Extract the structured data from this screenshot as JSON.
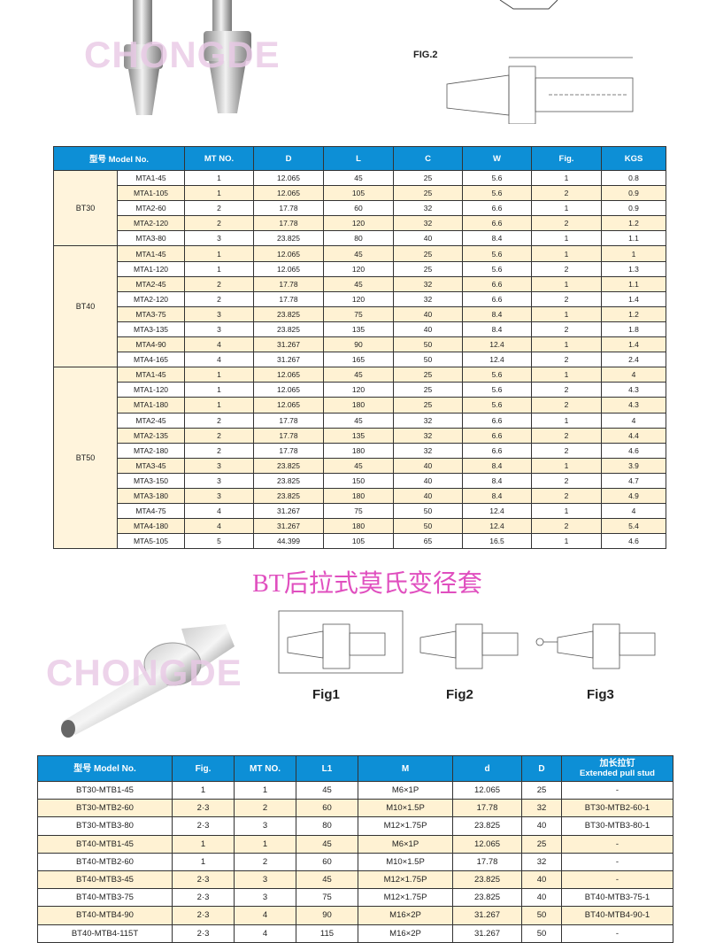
{
  "logo_text": "CHONGDE",
  "fig_top": "FIG.2",
  "table1": {
    "headers": [
      "型号 Model No.",
      "MT NO.",
      "D",
      "L",
      "C",
      "W",
      "Fig.",
      "KGS"
    ],
    "groups": [
      {
        "name": "BT30",
        "rows": [
          [
            "MTA1-45",
            "1",
            "12.065",
            "45",
            "25",
            "5.6",
            "1",
            "0.8"
          ],
          [
            "MTA1-105",
            "1",
            "12.065",
            "105",
            "25",
            "5.6",
            "2",
            "0.9"
          ],
          [
            "MTA2-60",
            "2",
            "17.78",
            "60",
            "32",
            "6.6",
            "1",
            "0.9"
          ],
          [
            "MTA2-120",
            "2",
            "17.78",
            "120",
            "32",
            "6.6",
            "2",
            "1.2"
          ],
          [
            "MTA3-80",
            "3",
            "23.825",
            "80",
            "40",
            "8.4",
            "1",
            "1.1"
          ]
        ]
      },
      {
        "name": "BT40",
        "rows": [
          [
            "MTA1-45",
            "1",
            "12.065",
            "45",
            "25",
            "5.6",
            "1",
            "1"
          ],
          [
            "MTA1-120",
            "1",
            "12.065",
            "120",
            "25",
            "5.6",
            "2",
            "1.3"
          ],
          [
            "MTA2-45",
            "2",
            "17.78",
            "45",
            "32",
            "6.6",
            "1",
            "1.1"
          ],
          [
            "MTA2-120",
            "2",
            "17.78",
            "120",
            "32",
            "6.6",
            "2",
            "1.4"
          ],
          [
            "MTA3-75",
            "3",
            "23.825",
            "75",
            "40",
            "8.4",
            "1",
            "1.2"
          ],
          [
            "MTA3-135",
            "3",
            "23.825",
            "135",
            "40",
            "8.4",
            "2",
            "1.8"
          ],
          [
            "MTA4-90",
            "4",
            "31.267",
            "90",
            "50",
            "12.4",
            "1",
            "1.4"
          ],
          [
            "MTA4-165",
            "4",
            "31.267",
            "165",
            "50",
            "12.4",
            "2",
            "2.4"
          ]
        ]
      },
      {
        "name": "BT50",
        "rows": [
          [
            "MTA1-45",
            "1",
            "12.065",
            "45",
            "25",
            "5.6",
            "1",
            "4"
          ],
          [
            "MTA1-120",
            "1",
            "12.065",
            "120",
            "25",
            "5.6",
            "2",
            "4.3"
          ],
          [
            "MTA1-180",
            "1",
            "12.065",
            "180",
            "25",
            "5.6",
            "2",
            "4.3"
          ],
          [
            "MTA2-45",
            "2",
            "17.78",
            "45",
            "32",
            "6.6",
            "1",
            "4"
          ],
          [
            "MTA2-135",
            "2",
            "17.78",
            "135",
            "32",
            "6.6",
            "2",
            "4.4"
          ],
          [
            "MTA2-180",
            "2",
            "17.78",
            "180",
            "32",
            "6.6",
            "2",
            "4.6"
          ],
          [
            "MTA3-45",
            "3",
            "23.825",
            "45",
            "40",
            "8.4",
            "1",
            "3.9"
          ],
          [
            "MTA3-150",
            "3",
            "23.825",
            "150",
            "40",
            "8.4",
            "2",
            "4.7"
          ],
          [
            "MTA3-180",
            "3",
            "23.825",
            "180",
            "40",
            "8.4",
            "2",
            "4.9"
          ],
          [
            "MTA4-75",
            "4",
            "31.267",
            "75",
            "50",
            "12.4",
            "1",
            "4"
          ],
          [
            "MTA4-180",
            "4",
            "31.267",
            "180",
            "50",
            "12.4",
            "2",
            "5.4"
          ],
          [
            "MTA5-105",
            "5",
            "44.399",
            "105",
            "65",
            "16.5",
            "1",
            "4.6"
          ]
        ]
      }
    ]
  },
  "section_title": "BT后拉式莫氏变径套",
  "figs": [
    "Fig1",
    "Fig2",
    "Fig3"
  ],
  "table2": {
    "headers": [
      "型号 Model No.",
      "Fig.",
      "MT NO.",
      "L1",
      "M",
      "d",
      "D",
      "加长拉钉\nExtended pull stud"
    ],
    "rows": [
      [
        "BT30-MTB1-45",
        "1",
        "1",
        "45",
        "M6×1P",
        "12.065",
        "25",
        "-"
      ],
      [
        "BT30-MTB2-60",
        "2·3",
        "2",
        "60",
        "M10×1.5P",
        "17.78",
        "32",
        "BT30-MTB2-60-1"
      ],
      [
        "BT30-MTB3-80",
        "2·3",
        "3",
        "80",
        "M12×1.75P",
        "23.825",
        "40",
        "BT30-MTB3-80-1"
      ],
      [
        "BT40-MTB1-45",
        "1",
        "1",
        "45",
        "M6×1P",
        "12.065",
        "25",
        "-"
      ],
      [
        "BT40-MTB2-60",
        "1",
        "2",
        "60",
        "M10×1.5P",
        "17.78",
        "32",
        "-"
      ],
      [
        "BT40-MTB3-45",
        "2·3",
        "3",
        "45",
        "M12×1.75P",
        "23.825",
        "40",
        "-"
      ],
      [
        "BT40-MTB3-75",
        "2·3",
        "3",
        "75",
        "M12×1.75P",
        "23.825",
        "40",
        "BT40-MTB3-75-1"
      ],
      [
        "BT40-MTB4-90",
        "2·3",
        "4",
        "90",
        "M16×2P",
        "31.267",
        "50",
        "BT40-MTB4-90-1"
      ],
      [
        "BT40-MTB4-115T",
        "2·3",
        "4",
        "115",
        "M16×2P",
        "31.267",
        "50",
        "-"
      ]
    ]
  },
  "colors": {
    "header": "#0d8fd6",
    "row_alt": "#fff2d3",
    "title": "#e04fbf"
  }
}
